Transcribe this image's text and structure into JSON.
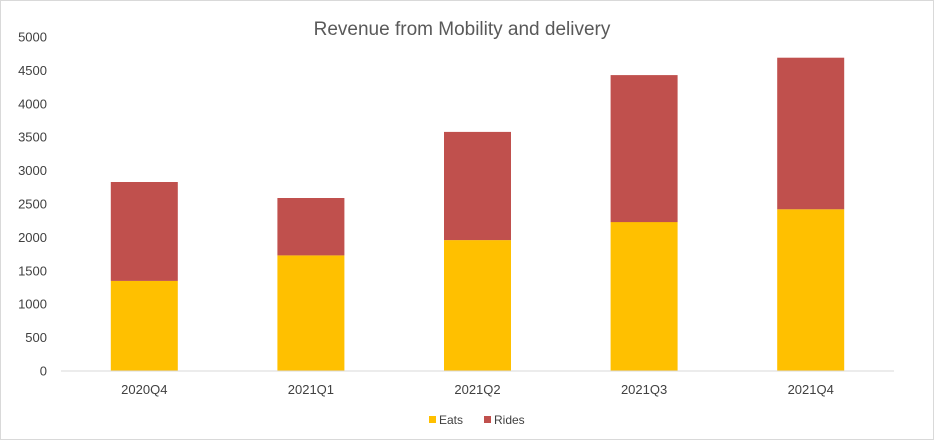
{
  "chart_data": {
    "type": "bar",
    "stacked": true,
    "title": "Revenue from Mobility and delivery",
    "xlabel": "",
    "ylabel": "",
    "categories": [
      "2020Q4",
      "2021Q1",
      "2021Q2",
      "2021Q3",
      "2021Q4"
    ],
    "series": [
      {
        "name": "Eats",
        "color": "#FFC000",
        "values": [
          1350,
          1730,
          1960,
          2230,
          2420
        ]
      },
      {
        "name": "Rides",
        "color": "#C0504D",
        "values": [
          1480,
          860,
          1620,
          2200,
          2270
        ]
      }
    ],
    "ylim": [
      0,
      5000
    ],
    "yticks": [
      0,
      500,
      1000,
      1500,
      2000,
      2500,
      3000,
      3500,
      4000,
      4500,
      5000
    ],
    "grid": false,
    "legend_position": "bottom"
  }
}
